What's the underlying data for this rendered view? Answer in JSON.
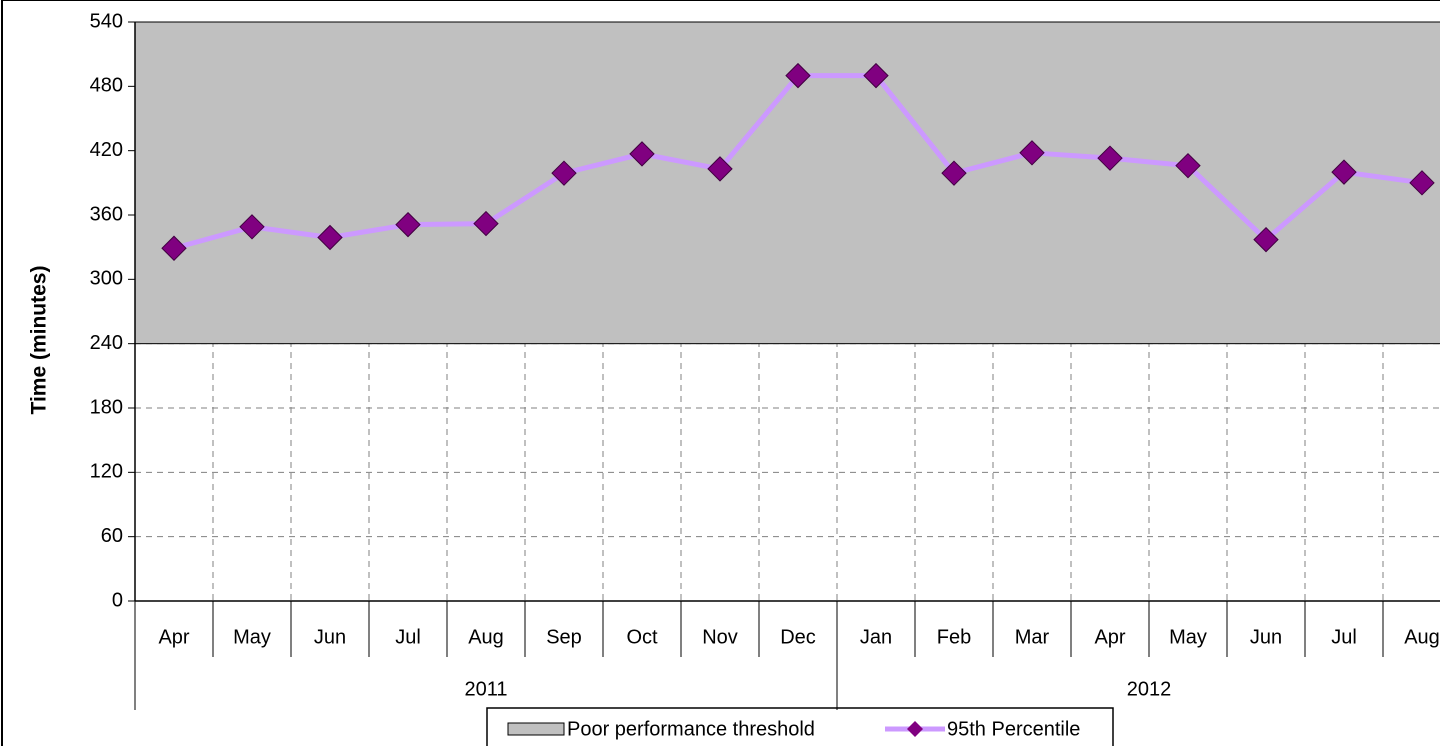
{
  "chart_data": {
    "type": "line",
    "y_label": "Time (minutes)",
    "categories": [
      "Apr",
      "May",
      "Jun",
      "Jul",
      "Aug",
      "Sep",
      "Oct",
      "Nov",
      "Dec",
      "Jan",
      "Feb",
      "Mar",
      "Apr",
      "May",
      "Jun",
      "Jul",
      "Aug"
    ],
    "groups": [
      {
        "label": "2011",
        "span": 9
      },
      {
        "label": "2012",
        "span": 8
      }
    ],
    "threshold": {
      "name": "Poor performance threshold",
      "color": "#c0c0c0",
      "from": 240,
      "to": 540
    },
    "series": [
      {
        "name": "95th Percentile",
        "color": "#cc99ff",
        "marker_color": "#800080",
        "values": [
          329,
          349,
          339,
          351,
          352,
          399,
          417,
          403,
          490,
          490,
          399,
          418,
          413,
          406,
          337,
          400,
          390
        ]
      }
    ],
    "ylim": [
      0,
      540
    ],
    "yticks": [
      0,
      60,
      120,
      180,
      240,
      300,
      360,
      420,
      480,
      540
    ],
    "grid": true
  }
}
